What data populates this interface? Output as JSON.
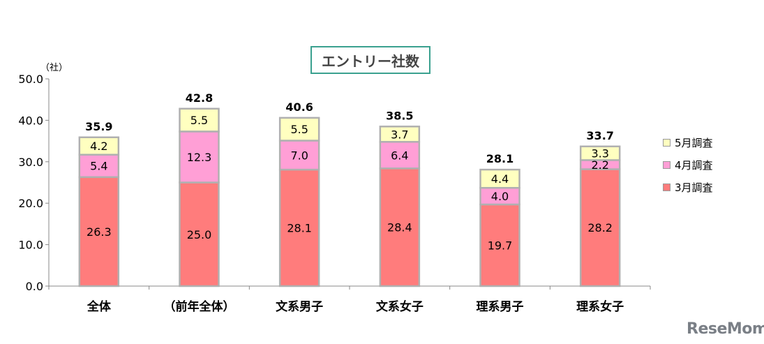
{
  "chart_data": {
    "type": "bar",
    "stacked": true,
    "title": "エントリー社数",
    "unit_label": "（社）",
    "xlabel": "",
    "ylabel": "",
    "ylim": [
      0,
      50
    ],
    "yticks": [
      "0.0",
      "10.0",
      "20.0",
      "30.0",
      "40.0",
      "50.0"
    ],
    "grid": false,
    "legend_position": "right",
    "categories": [
      "全体",
      "（前年全体）",
      "文系男子",
      "文系女子",
      "理系男子",
      "理系女子"
    ],
    "totals": [
      "35.9",
      "42.8",
      "40.6",
      "38.5",
      "28.1",
      "33.7"
    ],
    "series": [
      {
        "name": "3月調査",
        "color": "#ff7c7c",
        "values": [
          26.3,
          25.0,
          28.1,
          28.4,
          19.7,
          28.2
        ],
        "labels": [
          "26.3",
          "25.0",
          "28.1",
          "28.4",
          "19.7",
          "28.2"
        ]
      },
      {
        "name": "4月調査",
        "color": "#ff9fd6",
        "values": [
          5.4,
          12.3,
          7.0,
          6.4,
          4.0,
          2.2
        ],
        "labels": [
          "5.4",
          "12.3",
          "7.0",
          "6.4",
          "4.0",
          "2.2"
        ]
      },
      {
        "name": "5月調査",
        "color": "#ffffc0",
        "values": [
          4.2,
          5.5,
          5.5,
          3.7,
          4.4,
          3.3
        ],
        "labels": [
          "4.2",
          "5.5",
          "5.5",
          "3.7",
          "4.4",
          "3.3"
        ]
      }
    ]
  },
  "legend_order": [
    "5月調査",
    "4月調査",
    "3月調査"
  ],
  "watermark": "ReseMom"
}
